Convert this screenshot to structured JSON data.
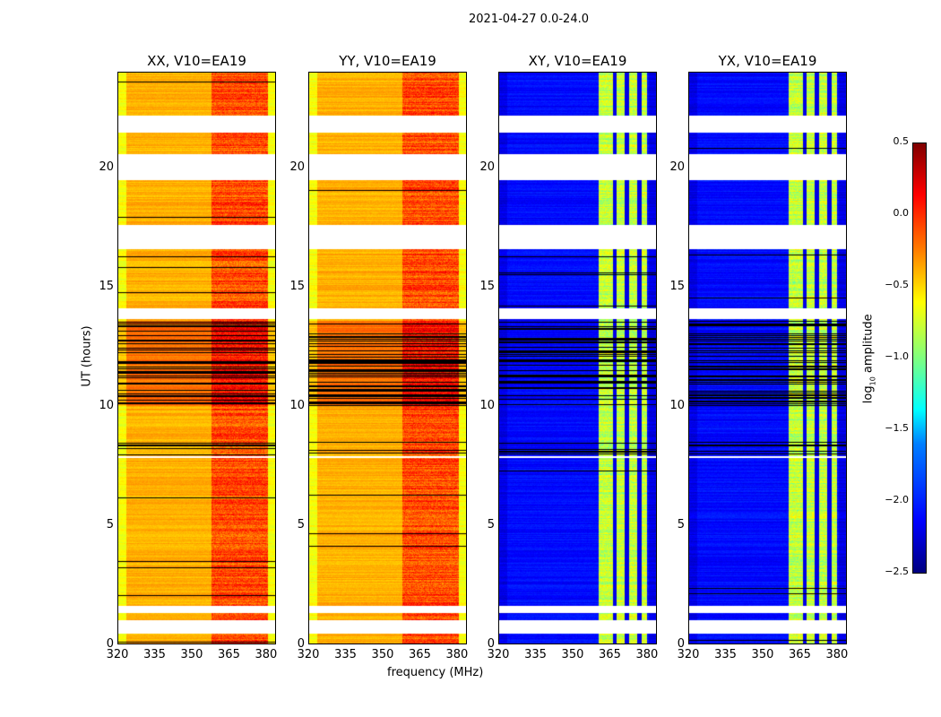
{
  "chart_data": {
    "type": "heatmap",
    "title": "2021-04-27 0.0-24.0",
    "xlabel": "frequency (MHz)",
    "ylabel": "UT (hours)",
    "xlim": [
      320,
      384
    ],
    "ylim": [
      0,
      24
    ],
    "xticks": [
      "320",
      "335",
      "350",
      "365",
      "380"
    ],
    "yticks": [
      "0",
      "5",
      "10",
      "15",
      "20"
    ],
    "colorbar": {
      "label": "log10 amplitude",
      "label_main": "log",
      "label_sub": "10",
      "label_tail": " amplitude",
      "range": [
        -2.5,
        0.5
      ],
      "ticks": [
        "0.5",
        "0.0",
        "−0.5",
        "−1.0",
        "−1.5",
        "−2.0",
        "−2.5"
      ],
      "colormap": "jet"
    },
    "flagged_time_ranges_hours": [
      [
        0.45,
        0.98
      ],
      [
        1.3,
        1.6
      ],
      [
        7.8,
        7.9
      ],
      [
        13.66,
        14.1
      ],
      [
        16.6,
        17.6
      ],
      [
        19.5,
        20.6
      ],
      [
        21.5,
        22.2
      ]
    ],
    "dense_black_row_ranges_hours": [
      [
        7.9,
        8.5
      ],
      [
        10.0,
        13.6
      ]
    ],
    "panels": [
      {
        "title": "XX, V10=EA19",
        "base_log_amp": -0.4,
        "rfi_band_mhz": [
          358,
          381
        ],
        "rfi_log_amp": -0.1
      },
      {
        "title": "YY, V10=EA19",
        "base_log_amp": -0.4,
        "rfi_band_mhz": [
          358,
          381
        ],
        "rfi_log_amp": -0.1
      },
      {
        "title": "XY, V10=EA19",
        "base_log_amp": -2.1,
        "rfi_band_mhz": [
          360.5,
          380
        ],
        "rfi_log_amp": -0.8,
        "channel_gaps_mhz": [
          367,
          372,
          377
        ]
      },
      {
        "title": "YX, V10=EA19",
        "base_log_amp": -2.1,
        "rfi_band_mhz": [
          360.5,
          380
        ],
        "rfi_log_amp": -0.8,
        "channel_gaps_mhz": [
          367,
          372,
          377
        ]
      }
    ]
  }
}
